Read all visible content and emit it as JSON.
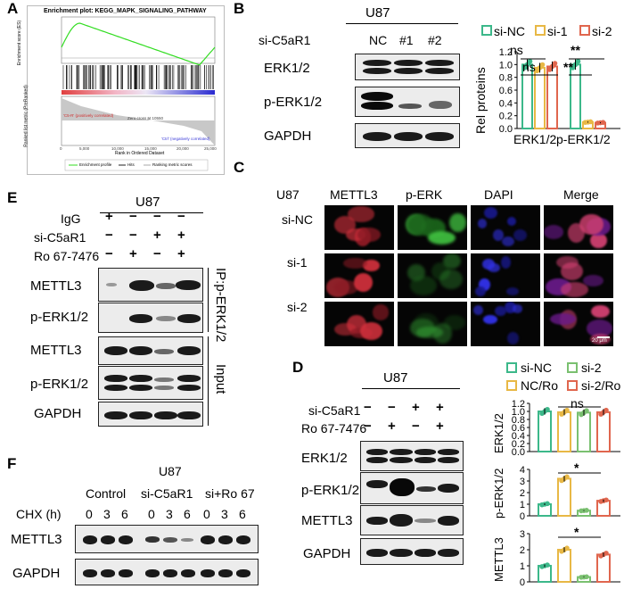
{
  "panels": {
    "A": "A",
    "B": "B",
    "C": "C",
    "D": "D",
    "E": "E",
    "F": "F"
  },
  "gsea": {
    "title": "Enrichment plot: KEGG_MAPK_SIGNALING_PATHWAY",
    "ylabel": "Enrichment score (ES)",
    "ylabel2": "Ranked list metric (PreRanked)",
    "xlabel": "Rank in Ordered Dataset",
    "pos_label": "'C5-R' (positively correlated)",
    "neg_label": "'Ctrl' (negatively correlated)",
    "zero_cross": "Zero cross at 10550",
    "legend": [
      "Enrichment profile",
      "Hits",
      "Ranking metric scores"
    ],
    "colors": {
      "profile": "#33dd22",
      "pos": "#e04040",
      "neg": "#3a3ad8"
    }
  },
  "panelB": {
    "cell": "U87",
    "row_label": "si-C5aR1",
    "lanes": [
      "NC",
      "#1",
      "#2"
    ],
    "blots": [
      "ERK1/2",
      "p-ERK1/2",
      "GAPDH"
    ],
    "legend": [
      "si-NC",
      "si-1",
      "si-2"
    ],
    "colors": [
      "#3cb88a",
      "#e8b845",
      "#e0664e"
    ],
    "sig": [
      "ns",
      "ns",
      "**",
      "**"
    ]
  },
  "chartB": {
    "type": "bar",
    "categories": [
      "ERK1/2",
      "p-ERK1/2"
    ],
    "series": [
      {
        "name": "si-NC",
        "values": [
          1.0,
          1.0
        ]
      },
      {
        "name": "si-1",
        "values": [
          0.95,
          0.1
        ]
      },
      {
        "name": "si-2",
        "values": [
          0.97,
          0.09
        ]
      }
    ],
    "ylabel": "Rel proteins",
    "ylim": [
      0,
      1.2
    ],
    "yticks": [
      "0.0",
      "0.2",
      "0.4",
      "0.6",
      "0.8",
      "1.0",
      "1.2"
    ]
  },
  "panelC": {
    "cell": "U87",
    "columns": [
      "METTL3",
      "p-ERK",
      "DAPI",
      "Merge"
    ],
    "rows": [
      "si-NC",
      "si-1",
      "si-2"
    ],
    "scale": "20 μm"
  },
  "panelE": {
    "cell": "U87",
    "conditions": [
      "IgG",
      "si-C5aR1",
      "Ro 67-7476"
    ],
    "signs": [
      [
        "+",
        "−",
        "−",
        "−"
      ],
      [
        "−",
        "−",
        "+",
        "+"
      ],
      [
        "−",
        "+",
        "−",
        "+"
      ]
    ],
    "blots": [
      "METTL3",
      "p-ERK1/2",
      "METTL3",
      "p-ERK1/2",
      "GAPDH"
    ],
    "ip_label": "IP:p-ERK1/2",
    "input_label": "Input"
  },
  "panelD": {
    "cell": "U87",
    "conditions": [
      "si-C5aR1",
      "Ro 67-7476"
    ],
    "signs": [
      [
        "−",
        "−",
        "+",
        "+"
      ],
      [
        "−",
        "+",
        "−",
        "+"
      ]
    ],
    "blots": [
      "ERK1/2",
      "p-ERK1/2",
      "METTL3",
      "GAPDH"
    ],
    "legend": [
      "si-NC",
      "si-2",
      "NC/Ro",
      "si-2/Ro"
    ],
    "colors": [
      "#3cb88a",
      "#7ac070",
      "#e8b845",
      "#e0664e"
    ],
    "sig": [
      "ns",
      "*",
      "*"
    ]
  },
  "chart_data": [
    {
      "type": "bar",
      "ylabel": "ERK1/2",
      "categories": [
        "si-NC",
        "NC/Ro",
        "si-2",
        "si-2/Ro"
      ],
      "values": [
        1.0,
        0.98,
        0.97,
        0.98
      ],
      "ylim": [
        0,
        1.2
      ],
      "yticks": [
        "0.0",
        "0.2",
        "0.4",
        "0.6",
        "0.8",
        "1.0",
        "1.2"
      ]
    },
    {
      "type": "bar",
      "ylabel": "p-ERK1/2",
      "categories": [
        "si-NC",
        "NC/Ro",
        "si-2",
        "si-2/Ro"
      ],
      "values": [
        1.0,
        3.2,
        0.45,
        1.3
      ],
      "ylim": [
        0,
        4
      ],
      "yticks": [
        "0",
        "1",
        "2",
        "3",
        "4"
      ]
    },
    {
      "type": "bar",
      "ylabel": "METTL3",
      "categories": [
        "si-NC",
        "NC/Ro",
        "si-2",
        "si-2/Ro"
      ],
      "values": [
        1.0,
        2.0,
        0.3,
        1.7
      ],
      "ylim": [
        0,
        3
      ],
      "yticks": [
        "0",
        "1",
        "2",
        "3"
      ]
    }
  ],
  "panelF": {
    "cell": "U87",
    "groups": [
      "Control",
      "si-C5aR1",
      "si+Ro 67"
    ],
    "chx": "CHX (h)",
    "times": [
      "0",
      "3",
      "6"
    ],
    "blots": [
      "METTL3",
      "GAPDH"
    ]
  }
}
